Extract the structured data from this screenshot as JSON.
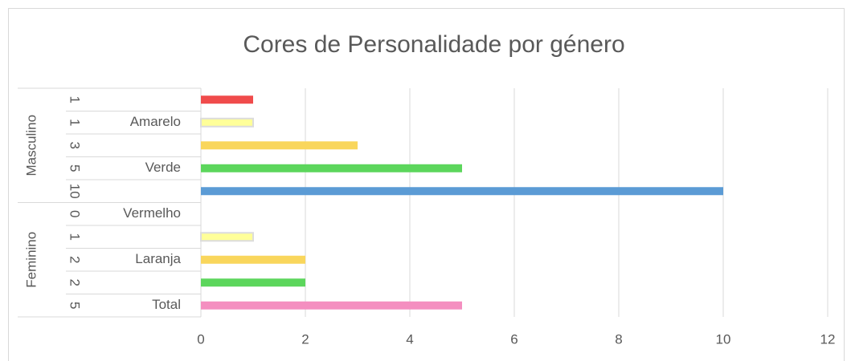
{
  "chart_data": {
    "type": "bar",
    "orientation": "horizontal",
    "title": "Cores de Personalidade por género",
    "groups": [
      {
        "name": "Masculino",
        "categories": [
          null,
          "Amarelo",
          null,
          "Verde",
          null
        ],
        "values": [
          1,
          1,
          3,
          5,
          10
        ],
        "colors": [
          "#f04b4b",
          "#ffff99",
          "#f9d65c",
          "#5cd65c",
          "#5b9bd5"
        ]
      },
      {
        "name": "Feminino",
        "categories": [
          "Vermelho",
          null,
          "Laranja",
          null,
          "Total"
        ],
        "values": [
          0,
          1,
          2,
          2,
          5
        ],
        "colors": [
          "#f04b4b",
          "#ffff99",
          "#f9d65c",
          "#5cd65c",
          "#f48fc0"
        ]
      }
    ],
    "xlim": [
      0,
      12
    ],
    "xticks": [
      0,
      2,
      4,
      6,
      8,
      10,
      12
    ],
    "grid": true
  }
}
